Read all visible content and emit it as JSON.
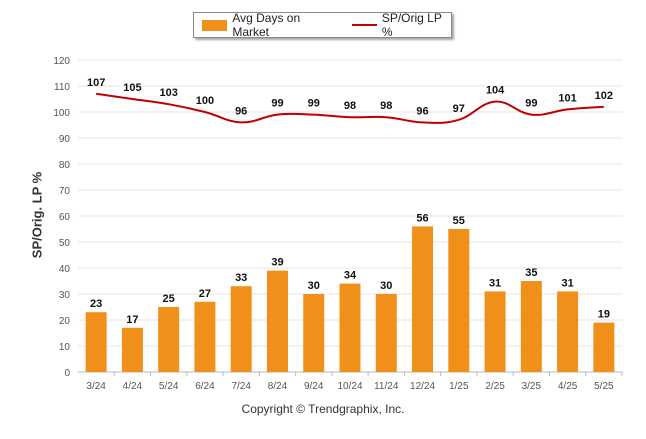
{
  "legend": {
    "bar_label": "Avg Days on Market",
    "line_label": "SP/Orig LP %"
  },
  "footer": "Copyright © Trendgraphix, Inc.",
  "colors": {
    "bar": "#f0901a",
    "line": "#c00000",
    "grid": "#e6e6e6"
  },
  "chart_data": {
    "type": "bar",
    "title": "",
    "xlabel": "",
    "ylabel": "SP/Orig. LP %",
    "ylim": [
      0,
      120
    ],
    "yticks": [
      0,
      10,
      20,
      30,
      40,
      50,
      60,
      70,
      80,
      90,
      100,
      110,
      120
    ],
    "grid": true,
    "legend_position": "top-center",
    "categories": [
      "3/24",
      "4/24",
      "5/24",
      "6/24",
      "7/24",
      "8/24",
      "9/24",
      "10/24",
      "11/24",
      "12/24",
      "1/25",
      "2/25",
      "3/25",
      "4/25",
      "5/25"
    ],
    "series": [
      {
        "name": "Avg Days on Market",
        "type": "bar",
        "values": [
          23,
          17,
          25,
          27,
          33,
          39,
          30,
          34,
          30,
          56,
          55,
          31,
          35,
          31,
          19
        ]
      },
      {
        "name": "SP/Orig LP %",
        "type": "line",
        "values": [
          107,
          105,
          103,
          100,
          96,
          99,
          99,
          98,
          98,
          96,
          97,
          104,
          99,
          101,
          102
        ]
      }
    ]
  }
}
